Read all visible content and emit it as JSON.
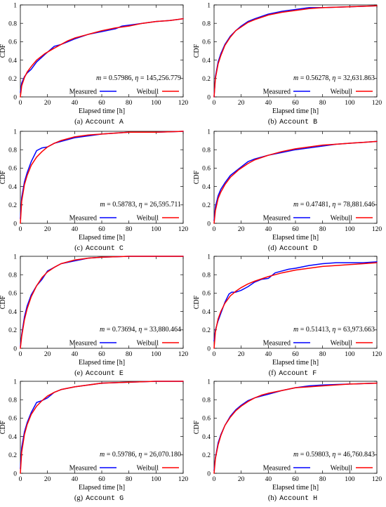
{
  "legend": {
    "measured": "Measured",
    "weibull": "Weibull"
  },
  "colors": {
    "measured": "#0000ff",
    "weibull": "#ff0000",
    "axis": "#000000"
  },
  "chart_data": [
    {
      "type": "line",
      "caption_prefix": "(a)",
      "caption_code": "Account A",
      "annotation": "m = 0.57986, η = 145,256.779",
      "m": "0.57986",
      "eta": "145,256.779",
      "xlabel": "Elapsed time [h]",
      "ylabel": "CDF",
      "xlim": [
        0,
        120
      ],
      "ylim": [
        0,
        1
      ],
      "xticks": [
        0,
        20,
        40,
        60,
        80,
        100,
        120
      ],
      "yticks": [
        0,
        0.2,
        0.4,
        0.6,
        0.8,
        1
      ],
      "series": [
        {
          "name": "Measured",
          "x": [
            0,
            1,
            3,
            5,
            8,
            12,
            18,
            25,
            30,
            35,
            40,
            50,
            60,
            70,
            75,
            80,
            90,
            100,
            110,
            120
          ],
          "y": [
            0.05,
            0.15,
            0.22,
            0.26,
            0.3,
            0.38,
            0.46,
            0.55,
            0.57,
            0.6,
            0.63,
            0.68,
            0.71,
            0.74,
            0.77,
            0.78,
            0.8,
            0.82,
            0.83,
            0.85
          ]
        },
        {
          "name": "Weibull",
          "x": [
            0,
            1,
            3,
            5,
            8,
            12,
            18,
            25,
            30,
            35,
            40,
            50,
            60,
            70,
            80,
            90,
            100,
            110,
            120
          ],
          "y": [
            0,
            0.12,
            0.21,
            0.27,
            0.33,
            0.4,
            0.47,
            0.53,
            0.57,
            0.61,
            0.64,
            0.68,
            0.72,
            0.75,
            0.77,
            0.8,
            0.82,
            0.83,
            0.85
          ]
        }
      ]
    },
    {
      "type": "line",
      "caption_prefix": "(b)",
      "caption_code": "Account B",
      "annotation": "m = 0.56278, η = 32,631.863",
      "m": "0.56278",
      "eta": "32,631.863",
      "xlabel": "Elapsed time [h]",
      "ylabel": "CDF",
      "xlim": [
        0,
        120
      ],
      "ylim": [
        0,
        1
      ],
      "xticks": [
        0,
        20,
        40,
        60,
        80,
        100,
        120
      ],
      "yticks": [
        0,
        0.2,
        0.4,
        0.6,
        0.8,
        1
      ],
      "series": [
        {
          "name": "Measured",
          "x": [
            0,
            1,
            3,
            5,
            8,
            12,
            16,
            20,
            25,
            30,
            40,
            50,
            60,
            70,
            80,
            100,
            120
          ],
          "y": [
            0,
            0.22,
            0.38,
            0.47,
            0.57,
            0.66,
            0.72,
            0.77,
            0.82,
            0.85,
            0.9,
            0.93,
            0.95,
            0.97,
            0.97,
            0.98,
            0.99
          ]
        },
        {
          "name": "Weibull",
          "x": [
            0,
            1,
            3,
            5,
            8,
            12,
            16,
            20,
            25,
            30,
            40,
            50,
            60,
            70,
            80,
            100,
            120
          ],
          "y": [
            0,
            0.2,
            0.36,
            0.45,
            0.56,
            0.65,
            0.72,
            0.76,
            0.81,
            0.84,
            0.89,
            0.92,
            0.94,
            0.96,
            0.97,
            0.98,
            0.99
          ]
        }
      ]
    },
    {
      "type": "line",
      "caption_prefix": "(c)",
      "caption_code": "Account C",
      "annotation": "m = 0.58783, η = 26,595.711",
      "m": "0.58783",
      "eta": "26,595.711",
      "xlabel": "Elapsed time [h]",
      "ylabel": "CDF",
      "xlim": [
        0,
        120
      ],
      "ylim": [
        0,
        1
      ],
      "xticks": [
        0,
        20,
        40,
        60,
        80,
        100,
        120
      ],
      "yticks": [
        0,
        0.2,
        0.4,
        0.6,
        0.8,
        1
      ],
      "series": [
        {
          "name": "Measured",
          "x": [
            0,
            1,
            3,
            5,
            8,
            12,
            16,
            20,
            25,
            30,
            40,
            50,
            60,
            80,
            100,
            120
          ],
          "y": [
            0.05,
            0.28,
            0.45,
            0.55,
            0.67,
            0.79,
            0.82,
            0.83,
            0.87,
            0.89,
            0.93,
            0.95,
            0.97,
            0.99,
            0.99,
            1.0
          ]
        },
        {
          "name": "Weibull",
          "x": [
            0,
            1,
            3,
            5,
            8,
            12,
            16,
            20,
            25,
            30,
            40,
            50,
            60,
            80,
            100,
            120
          ],
          "y": [
            0,
            0.24,
            0.42,
            0.52,
            0.63,
            0.72,
            0.78,
            0.83,
            0.87,
            0.9,
            0.94,
            0.96,
            0.97,
            0.99,
            0.99,
            1.0
          ]
        }
      ]
    },
    {
      "type": "line",
      "caption_prefix": "(d)",
      "caption_code": "Account D",
      "annotation": "m = 0.47481, η = 78,881.646",
      "m": "0.47481",
      "eta": "78,881.646",
      "xlabel": "Elapsed time [h]",
      "ylabel": "CDF",
      "xlim": [
        0,
        120
      ],
      "ylim": [
        0,
        1
      ],
      "xticks": [
        0,
        20,
        40,
        60,
        80,
        100,
        120
      ],
      "yticks": [
        0,
        0.2,
        0.4,
        0.6,
        0.8,
        1
      ],
      "series": [
        {
          "name": "Measured",
          "x": [
            0,
            1,
            3,
            5,
            8,
            12,
            18,
            25,
            30,
            40,
            50,
            60,
            70,
            80,
            90,
            100,
            110,
            120
          ],
          "y": [
            0.03,
            0.18,
            0.3,
            0.37,
            0.44,
            0.52,
            0.59,
            0.67,
            0.7,
            0.74,
            0.77,
            0.8,
            0.82,
            0.84,
            0.86,
            0.87,
            0.88,
            0.89
          ]
        },
        {
          "name": "Weibull",
          "x": [
            0,
            1,
            3,
            5,
            8,
            12,
            18,
            25,
            30,
            40,
            50,
            60,
            70,
            80,
            90,
            100,
            110,
            120
          ],
          "y": [
            0,
            0.14,
            0.27,
            0.34,
            0.42,
            0.5,
            0.58,
            0.65,
            0.69,
            0.74,
            0.78,
            0.81,
            0.83,
            0.85,
            0.86,
            0.87,
            0.88,
            0.89
          ]
        }
      ]
    },
    {
      "type": "line",
      "caption_prefix": "(e)",
      "caption_code": "Account E",
      "annotation": "m = 0.73694, η = 33,880.464",
      "m": "0.73694",
      "eta": "33,880.464",
      "xlabel": "Elapsed time [h]",
      "ylabel": "CDF",
      "xlim": [
        0,
        120
      ],
      "ylim": [
        0,
        1
      ],
      "xticks": [
        0,
        20,
        40,
        60,
        80,
        100,
        120
      ],
      "yticks": [
        0,
        0.2,
        0.4,
        0.6,
        0.8,
        1
      ],
      "series": [
        {
          "name": "Measured",
          "x": [
            0,
            1,
            3,
            5,
            8,
            12,
            16,
            20,
            25,
            30,
            40,
            50,
            60,
            80,
            100,
            120
          ],
          "y": [
            0.02,
            0.15,
            0.34,
            0.46,
            0.58,
            0.68,
            0.75,
            0.84,
            0.88,
            0.92,
            0.95,
            0.98,
            0.99,
            1.0,
            1.0,
            1.0
          ]
        },
        {
          "name": "Weibull",
          "x": [
            0,
            1,
            3,
            5,
            8,
            12,
            16,
            20,
            25,
            30,
            40,
            50,
            60,
            80,
            100,
            120
          ],
          "y": [
            0,
            0.13,
            0.31,
            0.43,
            0.56,
            0.68,
            0.77,
            0.83,
            0.88,
            0.92,
            0.96,
            0.98,
            0.99,
            1.0,
            1.0,
            1.0
          ]
        }
      ]
    },
    {
      "type": "line",
      "caption_prefix": "(f)",
      "caption_code": "Account F",
      "annotation": "m = 0.51413, η = 63,973.663",
      "m": "0.51413",
      "eta": "63,973.663",
      "xlabel": "Elapsed time [h]",
      "ylabel": "CDF",
      "xlim": [
        0,
        120
      ],
      "ylim": [
        0,
        1
      ],
      "xticks": [
        0,
        20,
        40,
        60,
        80,
        100,
        120
      ],
      "yticks": [
        0,
        0.2,
        0.4,
        0.6,
        0.8,
        1
      ],
      "series": [
        {
          "name": "Measured",
          "x": [
            0,
            1,
            3,
            5,
            8,
            11,
            13,
            16,
            20,
            25,
            30,
            35,
            40,
            45,
            50,
            55,
            60,
            70,
            80,
            90,
            100,
            110,
            120
          ],
          "y": [
            0.08,
            0.2,
            0.3,
            0.38,
            0.5,
            0.59,
            0.61,
            0.61,
            0.63,
            0.67,
            0.72,
            0.75,
            0.76,
            0.82,
            0.84,
            0.86,
            0.87,
            0.9,
            0.92,
            0.93,
            0.93,
            0.93,
            0.94
          ]
        },
        {
          "name": "Weibull",
          "x": [
            0,
            1,
            3,
            5,
            8,
            12,
            16,
            20,
            25,
            30,
            40,
            50,
            60,
            70,
            80,
            90,
            100,
            110,
            120
          ],
          "y": [
            0,
            0.18,
            0.32,
            0.4,
            0.49,
            0.57,
            0.62,
            0.66,
            0.7,
            0.73,
            0.78,
            0.82,
            0.85,
            0.87,
            0.89,
            0.9,
            0.91,
            0.92,
            0.93
          ]
        }
      ]
    },
    {
      "type": "line",
      "caption_prefix": "(g)",
      "caption_code": "Account G",
      "annotation": "m = 0.59786, η = 26,070.180",
      "m": "0.59786",
      "eta": "26,070.180",
      "xlabel": "Elapsed time [h]",
      "ylabel": "CDF",
      "xlim": [
        0,
        120
      ],
      "ylim": [
        0,
        1
      ],
      "xticks": [
        0,
        20,
        40,
        60,
        80,
        100,
        120
      ],
      "yticks": [
        0,
        0.2,
        0.4,
        0.6,
        0.8,
        1
      ],
      "series": [
        {
          "name": "Measured",
          "x": [
            0,
            1,
            3,
            5,
            8,
            12,
            16,
            20,
            25,
            30,
            40,
            50,
            60,
            80,
            100,
            120
          ],
          "y": [
            0.05,
            0.28,
            0.45,
            0.55,
            0.66,
            0.77,
            0.79,
            0.82,
            0.88,
            0.91,
            0.94,
            0.96,
            0.98,
            0.99,
            1.0,
            1.0
          ]
        },
        {
          "name": "Weibull",
          "x": [
            0,
            1,
            3,
            5,
            8,
            12,
            16,
            20,
            25,
            30,
            40,
            50,
            60,
            80,
            100,
            120
          ],
          "y": [
            0,
            0.23,
            0.42,
            0.53,
            0.64,
            0.73,
            0.79,
            0.84,
            0.88,
            0.91,
            0.94,
            0.96,
            0.98,
            0.99,
            1.0,
            1.0
          ]
        }
      ]
    },
    {
      "type": "line",
      "caption_prefix": "(h)",
      "caption_code": "Account H",
      "annotation": "m = 0.59803, η = 46,760.843",
      "m": "0.59803",
      "eta": "46,760.843",
      "xlabel": "Elapsed time [h]",
      "ylabel": "CDF",
      "xlim": [
        0,
        120
      ],
      "ylim": [
        0,
        1
      ],
      "xticks": [
        0,
        20,
        40,
        60,
        80,
        100,
        120
      ],
      "yticks": [
        0,
        0.2,
        0.4,
        0.6,
        0.8,
        1
      ],
      "series": [
        {
          "name": "Measured",
          "x": [
            0,
            1,
            3,
            5,
            8,
            12,
            16,
            20,
            25,
            30,
            35,
            40,
            50,
            60,
            70,
            80,
            100,
            120
          ],
          "y": [
            0.03,
            0.17,
            0.33,
            0.42,
            0.52,
            0.62,
            0.69,
            0.74,
            0.79,
            0.82,
            0.84,
            0.86,
            0.9,
            0.93,
            0.95,
            0.96,
            0.97,
            0.98
          ]
        },
        {
          "name": "Weibull",
          "x": [
            0,
            1,
            3,
            5,
            8,
            12,
            16,
            20,
            25,
            30,
            35,
            40,
            50,
            60,
            70,
            80,
            100,
            120
          ],
          "y": [
            0,
            0.16,
            0.31,
            0.41,
            0.52,
            0.61,
            0.68,
            0.73,
            0.78,
            0.82,
            0.85,
            0.87,
            0.9,
            0.93,
            0.94,
            0.95,
            0.97,
            0.98
          ]
        }
      ]
    }
  ]
}
